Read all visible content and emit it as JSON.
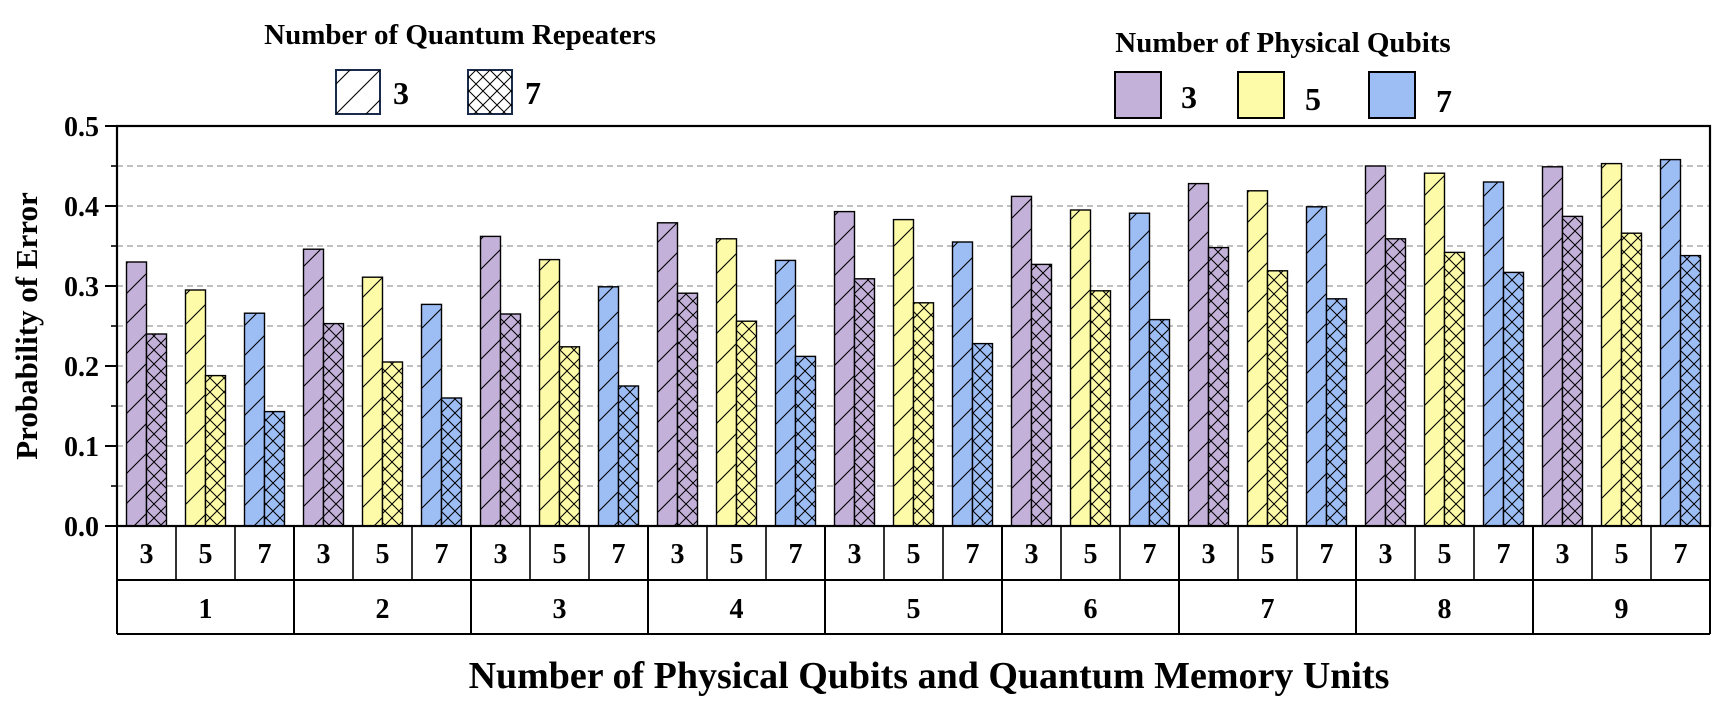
{
  "chart_data": {
    "type": "bar",
    "title": "",
    "xlabel": "Number of Physical Qubits and Quantum Memory Units",
    "ylabel": "Probability of Error",
    "ylim": [
      0.0,
      0.5
    ],
    "yticks": [
      "0.0",
      "0.1",
      "0.2",
      "0.3",
      "0.4",
      "0.5"
    ],
    "grid": "dashed horizontal lines every 0.05",
    "categories": [
      "1",
      "2",
      "3",
      "4",
      "5",
      "6",
      "7",
      "8",
      "9"
    ],
    "subcategories": [
      "3",
      "5",
      "7"
    ],
    "legend_repeaters": {
      "title": "Number of Quantum Repeaters",
      "entries": [
        {
          "label": "3",
          "pattern": "diagonal hatch"
        },
        {
          "label": "7",
          "pattern": "cross hatch"
        }
      ]
    },
    "legend_qubits": {
      "title": "Number of Physical Qubits",
      "entries": [
        {
          "label": "3",
          "color": "#c3b1d9"
        },
        {
          "label": "5",
          "color": "#fdfba7"
        },
        {
          "label": "7",
          "color": "#9dbdf5"
        }
      ]
    },
    "series": [
      {
        "qubits": "3",
        "repeaters": "3",
        "values": [
          0.33,
          0.346,
          0.362,
          0.379,
          0.393,
          0.412,
          0.428,
          0.45,
          0.449
        ]
      },
      {
        "qubits": "3",
        "repeaters": "7",
        "values": [
          0.24,
          0.253,
          0.265,
          0.291,
          0.309,
          0.327,
          0.348,
          0.359,
          0.387
        ]
      },
      {
        "qubits": "5",
        "repeaters": "3",
        "values": [
          0.295,
          0.311,
          0.333,
          0.359,
          0.383,
          0.395,
          0.419,
          0.441,
          0.453
        ]
      },
      {
        "qubits": "5",
        "repeaters": "7",
        "values": [
          0.188,
          0.205,
          0.224,
          0.256,
          0.279,
          0.294,
          0.319,
          0.342,
          0.366
        ]
      },
      {
        "qubits": "7",
        "repeaters": "3",
        "values": [
          0.266,
          0.277,
          0.299,
          0.332,
          0.355,
          0.391,
          0.399,
          0.43,
          0.458
        ]
      },
      {
        "qubits": "7",
        "repeaters": "7",
        "values": [
          0.143,
          0.16,
          0.175,
          0.212,
          0.228,
          0.258,
          0.284,
          0.317,
          0.338
        ]
      }
    ]
  }
}
